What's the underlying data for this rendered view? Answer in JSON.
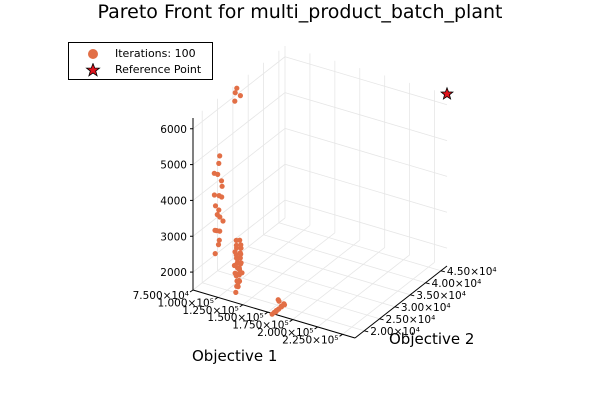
{
  "chart_data": {
    "type": "scatter3d",
    "title": "Pareto Front for multi_product_batch_plant",
    "xlabel": "Objective 1",
    "ylabel": "Objective 2",
    "zlabel": "",
    "x_ticks": [
      "7.500×10⁴",
      "1.000×10⁵",
      "1.250×10⁵",
      "1.500×10⁵",
      "1.750×10⁵",
      "2.000×10⁵",
      "2.250×10⁵"
    ],
    "y_ticks": [
      "2.00×10⁴",
      "2.50×10⁴",
      "3.00×10⁴",
      "3.50×10⁴",
      "4.00×10⁴",
      "4.50×10⁴"
    ],
    "z_ticks": [
      "2000",
      "3000",
      "4000",
      "5000",
      "6000"
    ],
    "xlim": [
      75000,
      237500
    ],
    "ylim": [
      17000,
      47000
    ],
    "zlim": [
      1500,
      6300
    ],
    "grid": true,
    "legend_position": "top-left",
    "series": [
      {
        "name": "Iterations: 100",
        "marker": "circle",
        "color": "#e26f46",
        "points": [
          [
            81000,
            22300,
            2210
          ],
          [
            79000,
            24000,
            2330
          ],
          [
            80500,
            23800,
            2480
          ],
          [
            80000,
            23100,
            2790
          ],
          [
            79000,
            24400,
            2680
          ],
          [
            80500,
            22400,
            2850
          ],
          [
            82000,
            24500,
            2980
          ],
          [
            81000,
            23800,
            3130
          ],
          [
            81500,
            22800,
            3270
          ],
          [
            79000,
            24100,
            3290
          ],
          [
            80000,
            22700,
            3510
          ],
          [
            81000,
            24400,
            3650
          ],
          [
            81500,
            23400,
            3760
          ],
          [
            79500,
            22500,
            3820
          ],
          [
            82000,
            24200,
            3970
          ],
          [
            80500,
            24500,
            4090
          ],
          [
            79500,
            23600,
            4320
          ],
          [
            81000,
            22000,
            4470
          ],
          [
            80000,
            23800,
            4620
          ],
          [
            79000,
            24400,
            4780
          ],
          [
            80000,
            29000,
            6010
          ],
          [
            81000,
            30500,
            6070
          ],
          [
            79500,
            29300,
            6220
          ],
          [
            80500,
            29500,
            6340
          ],
          [
            117000,
            17300,
            1760
          ],
          [
            115000,
            18700,
            1810
          ],
          [
            117000,
            17600,
            1910
          ],
          [
            116000,
            18400,
            1950
          ],
          [
            115000,
            19000,
            1960
          ],
          [
            118000,
            18200,
            2020
          ],
          [
            117000,
            17700,
            2050
          ],
          [
            115000,
            19100,
            2110
          ],
          [
            116000,
            17800,
            2180
          ],
          [
            118000,
            19000,
            2200
          ],
          [
            117000,
            18000,
            2220
          ],
          [
            116000,
            17400,
            2280
          ],
          [
            115000,
            19100,
            2300
          ],
          [
            118000,
            18200,
            2340
          ],
          [
            117000,
            17900,
            2400
          ],
          [
            116000,
            19200,
            2420
          ],
          [
            115000,
            17500,
            2480
          ],
          [
            118000,
            18700,
            2500
          ],
          [
            117000,
            17800,
            2550
          ],
          [
            116000,
            19100,
            2590
          ],
          [
            115000,
            18200,
            2640
          ],
          [
            118000,
            17500,
            2680
          ],
          [
            117000,
            18900,
            2720
          ],
          [
            116000,
            17800,
            2760
          ],
          [
            118000,
            18400,
            2800
          ],
          [
            115000,
            17700,
            2850
          ],
          [
            117000,
            19000,
            2880
          ],
          [
            116000,
            17900,
            2950
          ],
          [
            118000,
            18600,
            3010
          ],
          [
            117000,
            17500,
            3060
          ],
          [
            116000,
            18900,
            3100
          ],
          [
            115000,
            18100,
            3140
          ],
          [
            154000,
            17100,
            1470
          ],
          [
            155000,
            17500,
            1500
          ],
          [
            156000,
            17800,
            1520
          ],
          [
            157000,
            17400,
            1550
          ],
          [
            158000,
            17200,
            1600
          ],
          [
            159000,
            17600,
            1620
          ],
          [
            160000,
            17300,
            1650
          ],
          [
            161000,
            17900,
            1680
          ],
          [
            162000,
            17500,
            1720
          ],
          [
            163000,
            17200,
            1760
          ],
          [
            164000,
            17700,
            1800
          ],
          [
            165000,
            17400,
            1830
          ],
          [
            158000,
            17800,
            1860
          ],
          [
            161000,
            17100,
            1890
          ],
          [
            156000,
            17500,
            1520
          ],
          [
            164000,
            17900,
            1760
          ]
        ]
      },
      {
        "name": "Reference Point",
        "marker": "star",
        "color": "#e0141c",
        "points": [
          [
            237500,
            47000,
            6300
          ]
        ]
      }
    ]
  },
  "colors": {
    "series1": "#e26f46",
    "reference": "#e0141c",
    "grid": "#e6e6e6",
    "axis": "#000000"
  }
}
